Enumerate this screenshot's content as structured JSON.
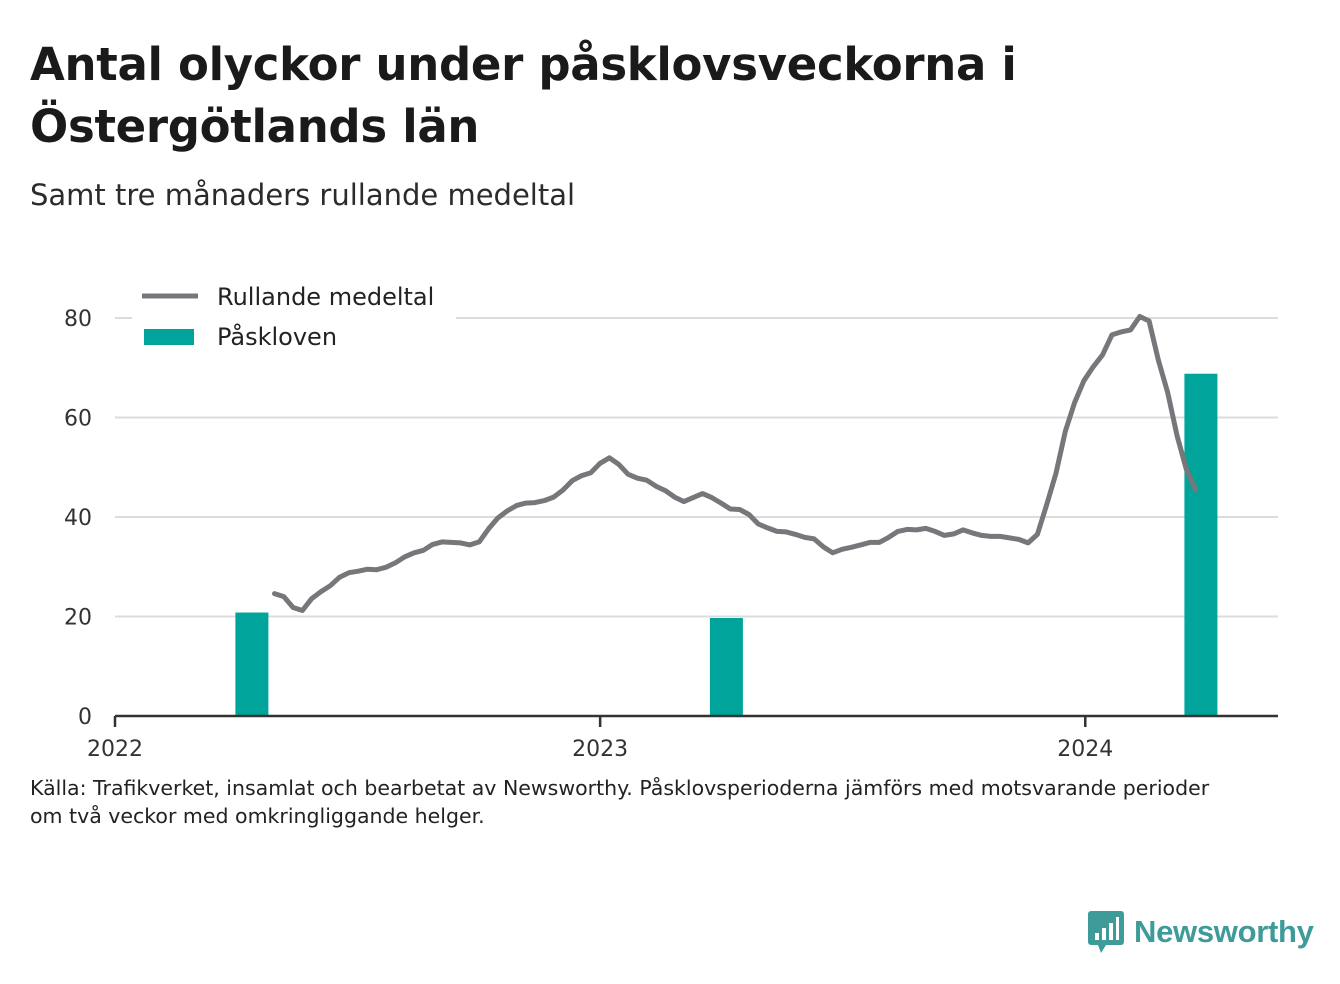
{
  "header": {
    "title": "Antal olyckor under påsklovsveckorna i Östergötlands län",
    "subtitle": "Samt tre månaders rullande medeltal"
  },
  "footer": {
    "source_line1": "Källa: Trafikverket, insamlat och bearbetat av Newsworthy. Påsklovsperioderna jämförs med motsvarande perioder",
    "source_line2": "om två veckor med omkringliggande helger."
  },
  "brand": {
    "name": "Newsworthy",
    "icon": "newsworthy-logo-icon",
    "color": "#3f9a9a"
  },
  "colors": {
    "bar": "#00a49a",
    "line": "#77767b",
    "grid": "#dcdcdc",
    "axis": "#333333"
  },
  "chart_data": {
    "type": "bar+line",
    "title": "Antal olyckor under påsklovsveckorna i Östergötlands län",
    "subtitle": "Samt tre månaders rullande medeltal",
    "ylim": [
      0,
      80
    ],
    "y_ticks": [
      0,
      20,
      40,
      60,
      80
    ],
    "y_tick_labels": [
      "0",
      "20",
      "40",
      "60",
      "80"
    ],
    "x_ticks": [
      "2022-01-01",
      "2023-01-01",
      "2024-01-01"
    ],
    "x_tick_labels": [
      "2022",
      "2023",
      "2024"
    ],
    "xlim": [
      "2022-01-01",
      "2024-05-25"
    ],
    "grid": true,
    "legend": {
      "position": "top-left",
      "entries": [
        {
          "label": "Rullande medeltal",
          "type": "line",
          "color": "#77767b"
        },
        {
          "label": "Påskloven",
          "type": "bar",
          "color": "#00a49a"
        }
      ]
    },
    "series": [
      {
        "name": "Påskloven",
        "type": "bar",
        "color": "#00a49a",
        "points": [
          {
            "x": "2022-04-14",
            "y": 20.8
          },
          {
            "x": "2023-04-06",
            "y": 19.7
          },
          {
            "x": "2024-03-28",
            "y": 68.8
          }
        ]
      },
      {
        "name": "Rullande medeltal",
        "type": "line",
        "color": "#77767b",
        "points": [
          {
            "x": "2022-05-01",
            "y": 24.6
          },
          {
            "x": "2022-05-08",
            "y": 24.0
          },
          {
            "x": "2022-05-15",
            "y": 21.8
          },
          {
            "x": "2022-05-22",
            "y": 21.2
          },
          {
            "x": "2022-05-29",
            "y": 23.6
          },
          {
            "x": "2022-06-05",
            "y": 25.0
          },
          {
            "x": "2022-06-12",
            "y": 26.2
          },
          {
            "x": "2022-06-19",
            "y": 27.9
          },
          {
            "x": "2022-06-26",
            "y": 28.8
          },
          {
            "x": "2022-07-03",
            "y": 29.1
          },
          {
            "x": "2022-07-10",
            "y": 29.5
          },
          {
            "x": "2022-07-17",
            "y": 29.4
          },
          {
            "x": "2022-07-24",
            "y": 29.9
          },
          {
            "x": "2022-07-31",
            "y": 30.8
          },
          {
            "x": "2022-08-07",
            "y": 32.0
          },
          {
            "x": "2022-08-14",
            "y": 32.8
          },
          {
            "x": "2022-08-21",
            "y": 33.3
          },
          {
            "x": "2022-08-28",
            "y": 34.5
          },
          {
            "x": "2022-09-04",
            "y": 35.0
          },
          {
            "x": "2022-09-11",
            "y": 34.9
          },
          {
            "x": "2022-09-18",
            "y": 34.8
          },
          {
            "x": "2022-09-25",
            "y": 34.4
          },
          {
            "x": "2022-10-02",
            "y": 35.0
          },
          {
            "x": "2022-10-09",
            "y": 37.6
          },
          {
            "x": "2022-10-16",
            "y": 39.8
          },
          {
            "x": "2022-10-23",
            "y": 41.2
          },
          {
            "x": "2022-10-30",
            "y": 42.3
          },
          {
            "x": "2022-11-06",
            "y": 42.8
          },
          {
            "x": "2022-11-13",
            "y": 42.9
          },
          {
            "x": "2022-11-20",
            "y": 43.3
          },
          {
            "x": "2022-11-27",
            "y": 44.0
          },
          {
            "x": "2022-12-04",
            "y": 45.4
          },
          {
            "x": "2022-12-11",
            "y": 47.3
          },
          {
            "x": "2022-12-18",
            "y": 48.3
          },
          {
            "x": "2022-12-25",
            "y": 48.9
          },
          {
            "x": "2023-01-01",
            "y": 50.8
          },
          {
            "x": "2023-01-08",
            "y": 51.9
          },
          {
            "x": "2023-01-15",
            "y": 50.6
          },
          {
            "x": "2023-01-22",
            "y": 48.6
          },
          {
            "x": "2023-01-29",
            "y": 47.8
          },
          {
            "x": "2023-02-05",
            "y": 47.4
          },
          {
            "x": "2023-02-12",
            "y": 46.2
          },
          {
            "x": "2023-02-19",
            "y": 45.3
          },
          {
            "x": "2023-02-26",
            "y": 44.0
          },
          {
            "x": "2023-03-05",
            "y": 43.1
          },
          {
            "x": "2023-03-12",
            "y": 43.9
          },
          {
            "x": "2023-03-19",
            "y": 44.7
          },
          {
            "x": "2023-03-26",
            "y": 43.9
          },
          {
            "x": "2023-04-02",
            "y": 42.8
          },
          {
            "x": "2023-04-09",
            "y": 41.6
          },
          {
            "x": "2023-04-16",
            "y": 41.5
          },
          {
            "x": "2023-04-23",
            "y": 40.5
          },
          {
            "x": "2023-04-30",
            "y": 38.6
          },
          {
            "x": "2023-05-07",
            "y": 37.8
          },
          {
            "x": "2023-05-14",
            "y": 37.1
          },
          {
            "x": "2023-05-21",
            "y": 37.0
          },
          {
            "x": "2023-05-28",
            "y": 36.5
          },
          {
            "x": "2023-06-04",
            "y": 35.9
          },
          {
            "x": "2023-06-11",
            "y": 35.6
          },
          {
            "x": "2023-06-18",
            "y": 34.0
          },
          {
            "x": "2023-06-25",
            "y": 32.8
          },
          {
            "x": "2023-07-02",
            "y": 33.5
          },
          {
            "x": "2023-07-09",
            "y": 33.9
          },
          {
            "x": "2023-07-16",
            "y": 34.4
          },
          {
            "x": "2023-07-23",
            "y": 34.9
          },
          {
            "x": "2023-07-30",
            "y": 34.9
          },
          {
            "x": "2023-08-06",
            "y": 35.9
          },
          {
            "x": "2023-08-13",
            "y": 37.1
          },
          {
            "x": "2023-08-20",
            "y": 37.5
          },
          {
            "x": "2023-08-27",
            "y": 37.4
          },
          {
            "x": "2023-09-03",
            "y": 37.7
          },
          {
            "x": "2023-09-10",
            "y": 37.1
          },
          {
            "x": "2023-09-17",
            "y": 36.3
          },
          {
            "x": "2023-09-24",
            "y": 36.6
          },
          {
            "x": "2023-10-01",
            "y": 37.4
          },
          {
            "x": "2023-10-08",
            "y": 36.8
          },
          {
            "x": "2023-10-15",
            "y": 36.3
          },
          {
            "x": "2023-10-22",
            "y": 36.1
          },
          {
            "x": "2023-10-29",
            "y": 36.1
          },
          {
            "x": "2023-11-05",
            "y": 35.8
          },
          {
            "x": "2023-11-12",
            "y": 35.5
          },
          {
            "x": "2023-11-19",
            "y": 34.8
          },
          {
            "x": "2023-11-26",
            "y": 36.5
          },
          {
            "x": "2023-12-03",
            "y": 42.5
          },
          {
            "x": "2023-12-10",
            "y": 48.8
          },
          {
            "x": "2023-12-17",
            "y": 57.2
          },
          {
            "x": "2023-12-24",
            "y": 63.0
          },
          {
            "x": "2023-12-31",
            "y": 67.4
          },
          {
            "x": "2024-01-07",
            "y": 70.2
          },
          {
            "x": "2024-01-14",
            "y": 72.6
          },
          {
            "x": "2024-01-21",
            "y": 76.6
          },
          {
            "x": "2024-01-28",
            "y": 77.2
          },
          {
            "x": "2024-02-04",
            "y": 77.6
          },
          {
            "x": "2024-02-11",
            "y": 80.3
          },
          {
            "x": "2024-02-18",
            "y": 79.4
          },
          {
            "x": "2024-02-25",
            "y": 71.5
          },
          {
            "x": "2024-03-03",
            "y": 65.0
          },
          {
            "x": "2024-03-10",
            "y": 56.4
          },
          {
            "x": "2024-03-17",
            "y": 49.6
          },
          {
            "x": "2024-03-24",
            "y": 45.4
          }
        ]
      }
    ]
  }
}
